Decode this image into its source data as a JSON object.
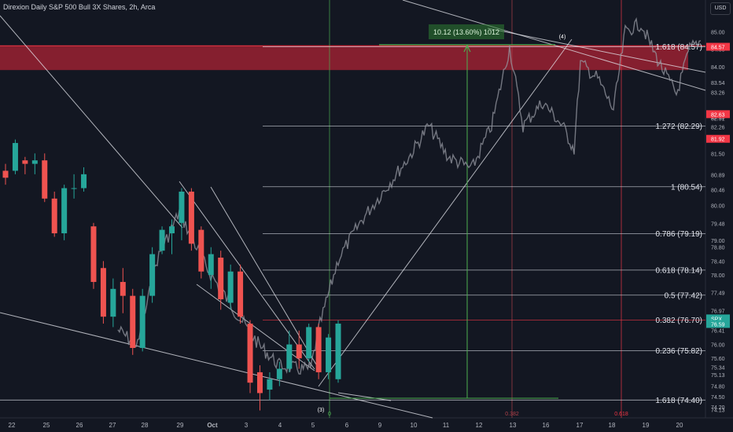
{
  "header": {
    "title": "Direxion Daily S&P 500 Bull 3X Shares, 2h, Arca",
    "currency": "USD"
  },
  "chart_data": {
    "type": "candlestick",
    "symbol": "Direxion Daily S&P 500 Bull 3X Shares",
    "interval": "2h",
    "exchange": "Arca",
    "ylim": [
      74.0,
      85.6
    ],
    "grid": false,
    "x_ticks": [
      "22",
      "25",
      "26",
      "27",
      "28",
      "29",
      "Oct",
      "3",
      "4",
      "5",
      "6",
      "9",
      "10",
      "11",
      "12",
      "13",
      "16",
      "17",
      "18",
      "19",
      "20"
    ],
    "y_ticks": [
      "85.00",
      "84.50",
      "84.00",
      "83.54",
      "83.26",
      "82.55",
      "82.51",
      "82.26",
      "81.88",
      "81.50",
      "80.89",
      "80.46",
      "80.00",
      "79.48",
      "79.00",
      "78.80",
      "78.40",
      "78.00",
      "77.49",
      "76.97",
      "76.66",
      "76.41",
      "76.00",
      "75.60",
      "75.34",
      "75.13",
      "74.80",
      "74.50",
      "74.20",
      "74.13"
    ],
    "price_labels": [
      {
        "text": "84.57",
        "color": "#f23645"
      },
      {
        "text": "82.63",
        "color": "#f23645"
      },
      {
        "text": "81.92",
        "color": "#f23645"
      },
      {
        "text": "SPX",
        "color": "#26a69a"
      },
      {
        "text": "76.59",
        "color": "#26a69a"
      }
    ],
    "fib_levels": [
      {
        "label": "1.618 (84.57)",
        "value": 84.57
      },
      {
        "label": "1.272 (82.29)",
        "value": 82.29
      },
      {
        "label": "1 (80.54)",
        "value": 80.54
      },
      {
        "label": "0.786 (79.19)",
        "value": 79.19
      },
      {
        "label": "0.618 (78.14)",
        "value": 78.14
      },
      {
        "label": "0.5 (77.42)",
        "value": 77.42
      },
      {
        "label": "0.382 (76.70)",
        "value": 76.7
      },
      {
        "label": "0.236 (75.82)",
        "value": 75.82
      },
      {
        "label": "1.618 (74.40)",
        "value": 74.4
      }
    ],
    "resistance_zone": [
      83.9,
      84.6
    ],
    "measure_label": "10.12 (13.60%) 1012",
    "wave_labels": [
      "(3)",
      "(4)"
    ],
    "time_fib_labels": [
      "0",
      "0.382",
      "0.618"
    ],
    "candles": [
      {
        "x": "22",
        "o": 81.0,
        "h": 81.2,
        "l": 80.6,
        "c": 80.8
      },
      {
        "x": "22",
        "o": 81.0,
        "h": 81.9,
        "l": 80.9,
        "c": 81.8
      },
      {
        "x": "22",
        "o": 81.3,
        "h": 81.4,
        "l": 80.9,
        "c": 81.2
      },
      {
        "x": "22",
        "o": 81.2,
        "h": 81.5,
        "l": 80.9,
        "c": 81.3
      },
      {
        "x": "25",
        "o": 81.3,
        "h": 81.5,
        "l": 80.1,
        "c": 80.2
      },
      {
        "x": "25",
        "o": 80.2,
        "h": 80.4,
        "l": 79.1,
        "c": 79.2
      },
      {
        "x": "25",
        "o": 79.2,
        "h": 80.6,
        "l": 79.0,
        "c": 80.5
      },
      {
        "x": "25",
        "o": 80.5,
        "h": 80.9,
        "l": 80.2,
        "c": 80.5
      },
      {
        "x": "26",
        "o": 80.5,
        "h": 81.1,
        "l": 80.4,
        "c": 80.9
      },
      {
        "x": "26",
        "o": 79.4,
        "h": 79.5,
        "l": 77.6,
        "c": 77.8
      },
      {
        "x": "26",
        "o": 78.2,
        "h": 78.4,
        "l": 76.6,
        "c": 76.8
      },
      {
        "x": "26",
        "o": 76.8,
        "h": 77.9,
        "l": 76.5,
        "c": 77.6
      },
      {
        "x": "27",
        "o": 77.8,
        "h": 78.2,
        "l": 76.9,
        "c": 77.4
      },
      {
        "x": "27",
        "o": 77.4,
        "h": 77.6,
        "l": 75.7,
        "c": 75.9
      },
      {
        "x": "27",
        "o": 75.9,
        "h": 77.6,
        "l": 75.8,
        "c": 77.4
      },
      {
        "x": "28",
        "o": 77.4,
        "h": 78.8,
        "l": 77.2,
        "c": 78.6
      },
      {
        "x": "28",
        "o": 78.7,
        "h": 79.4,
        "l": 78.6,
        "c": 79.3
      },
      {
        "x": "28",
        "o": 79.2,
        "h": 79.6,
        "l": 78.6,
        "c": 79.4
      },
      {
        "x": "29",
        "o": 79.5,
        "h": 80.5,
        "l": 79.0,
        "c": 80.4
      },
      {
        "x": "29",
        "o": 80.4,
        "h": 80.5,
        "l": 78.7,
        "c": 78.9
      },
      {
        "x": "29",
        "o": 79.3,
        "h": 79.4,
        "l": 77.9,
        "c": 78.1
      },
      {
        "x": "29",
        "o": 78.0,
        "h": 78.8,
        "l": 77.6,
        "c": 78.6
      },
      {
        "x": "Oct",
        "o": 78.5,
        "h": 78.7,
        "l": 77.0,
        "c": 77.3
      },
      {
        "x": "Oct",
        "o": 77.2,
        "h": 78.3,
        "l": 77.0,
        "c": 78.1
      },
      {
        "x": "Oct",
        "o": 78.1,
        "h": 78.3,
        "l": 76.6,
        "c": 76.8
      },
      {
        "x": "3",
        "o": 76.6,
        "h": 76.7,
        "l": 74.6,
        "c": 74.9
      },
      {
        "x": "3",
        "o": 75.2,
        "h": 75.4,
        "l": 74.1,
        "c": 74.6
      },
      {
        "x": "3",
        "o": 74.7,
        "h": 75.2,
        "l": 74.4,
        "c": 75.0
      },
      {
        "x": "4",
        "o": 75.0,
        "h": 75.5,
        "l": 74.8,
        "c": 75.3
      },
      {
        "x": "4",
        "o": 75.3,
        "h": 76.4,
        "l": 75.2,
        "c": 76.0
      },
      {
        "x": "4",
        "o": 76.0,
        "h": 76.4,
        "l": 75.3,
        "c": 75.6
      },
      {
        "x": "5",
        "o": 75.6,
        "h": 76.6,
        "l": 75.5,
        "c": 76.5
      },
      {
        "x": "5",
        "o": 76.5,
        "h": 76.6,
        "l": 75.0,
        "c": 75.2
      },
      {
        "x": "5",
        "o": 75.2,
        "h": 76.3,
        "l": 75.0,
        "c": 76.2
      },
      {
        "x": "6",
        "o": 75.0,
        "h": 76.7,
        "l": 74.9,
        "c": 76.6
      }
    ]
  }
}
